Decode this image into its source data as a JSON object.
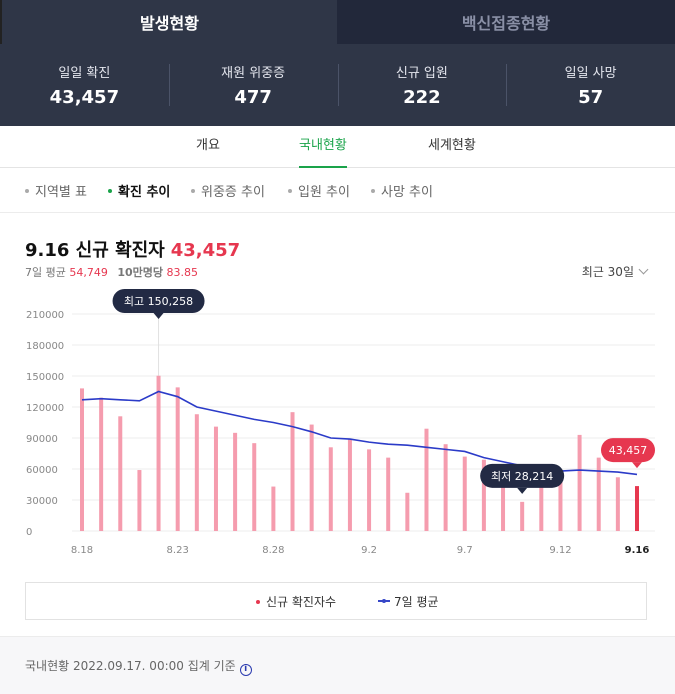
{
  "tabs": {
    "active": "발생현황",
    "inactive": "백신접종현황"
  },
  "stats": [
    {
      "label": "일일 확진",
      "value": "43,457"
    },
    {
      "label": "재원 위중증",
      "value": "477"
    },
    {
      "label": "신규 입원",
      "value": "222"
    },
    {
      "label": "일일 사망",
      "value": "57"
    }
  ],
  "subtabs": [
    "개요",
    "국내현황",
    "세계현황"
  ],
  "filters": [
    "지역별 표",
    "확진 추이",
    "위중증 추이",
    "입원 추이",
    "사망 추이"
  ],
  "heading": {
    "date_label": "9.16 신규 확진자",
    "value": "43,457"
  },
  "summary": {
    "avg_label": "7일 평균",
    "avg_value": "54,749",
    "per_label": "10만명당",
    "per_value": "83.85"
  },
  "period": "최근 30일",
  "colors": {
    "bar": "#f59cae",
    "bar_latest": "#e6374f",
    "line": "#2b3bc8",
    "header": "#2f3647"
  },
  "chart_data": {
    "type": "bar",
    "ylim": [
      0,
      210000
    ],
    "yticks": [
      0,
      30000,
      60000,
      90000,
      120000,
      150000,
      180000,
      210000
    ],
    "ytick_labels": [
      "0",
      "30000",
      "60000",
      "90000",
      "120000",
      "150000",
      "180000",
      "210000"
    ],
    "categories": [
      "8.18",
      "8.19",
      "8.20",
      "8.21",
      "8.22",
      "8.23",
      "8.24",
      "8.25",
      "8.26",
      "8.27",
      "8.28",
      "8.29",
      "8.30",
      "8.31",
      "9.1",
      "9.2",
      "9.3",
      "9.4",
      "9.5",
      "9.6",
      "9.7",
      "9.8",
      "9.9",
      "9.10",
      "9.11",
      "9.12",
      "9.13",
      "9.14",
      "9.15",
      "9.16"
    ],
    "xtick_labels": [
      "8.18",
      "8.23",
      "8.28",
      "9.2",
      "9.7",
      "9.12",
      "9.16"
    ],
    "series": [
      {
        "name": "신규 확진자수",
        "type": "bar",
        "values": [
          138000,
          129000,
          111000,
          59000,
          150258,
          139000,
          113000,
          101000,
          95000,
          85000,
          43000,
          115000,
          103000,
          81000,
          89000,
          79000,
          71000,
          37000,
          99000,
          84000,
          72000,
          69000,
          59000,
          28214,
          52000,
          58000,
          93000,
          71000,
          52000,
          43457
        ]
      },
      {
        "name": "7일 평균",
        "type": "line",
        "values": [
          127000,
          128000,
          127000,
          126000,
          135000,
          130000,
          120000,
          116000,
          112000,
          108000,
          105000,
          101000,
          96000,
          90000,
          89000,
          86000,
          84000,
          83000,
          81000,
          79000,
          77000,
          71000,
          67000,
          63000,
          62000,
          58000,
          59000,
          58000,
          57000,
          54749
        ]
      }
    ],
    "annotations": [
      {
        "label": "최고",
        "value": "150,258"
      },
      {
        "label": "최저",
        "value": "28,214"
      },
      {
        "label": "",
        "value": "43,457"
      }
    ]
  },
  "legend": {
    "bar": "신규 확진자수",
    "line": "7일 평균"
  },
  "footer": "국내현황 2022.09.17. 00:00 집계 기준"
}
